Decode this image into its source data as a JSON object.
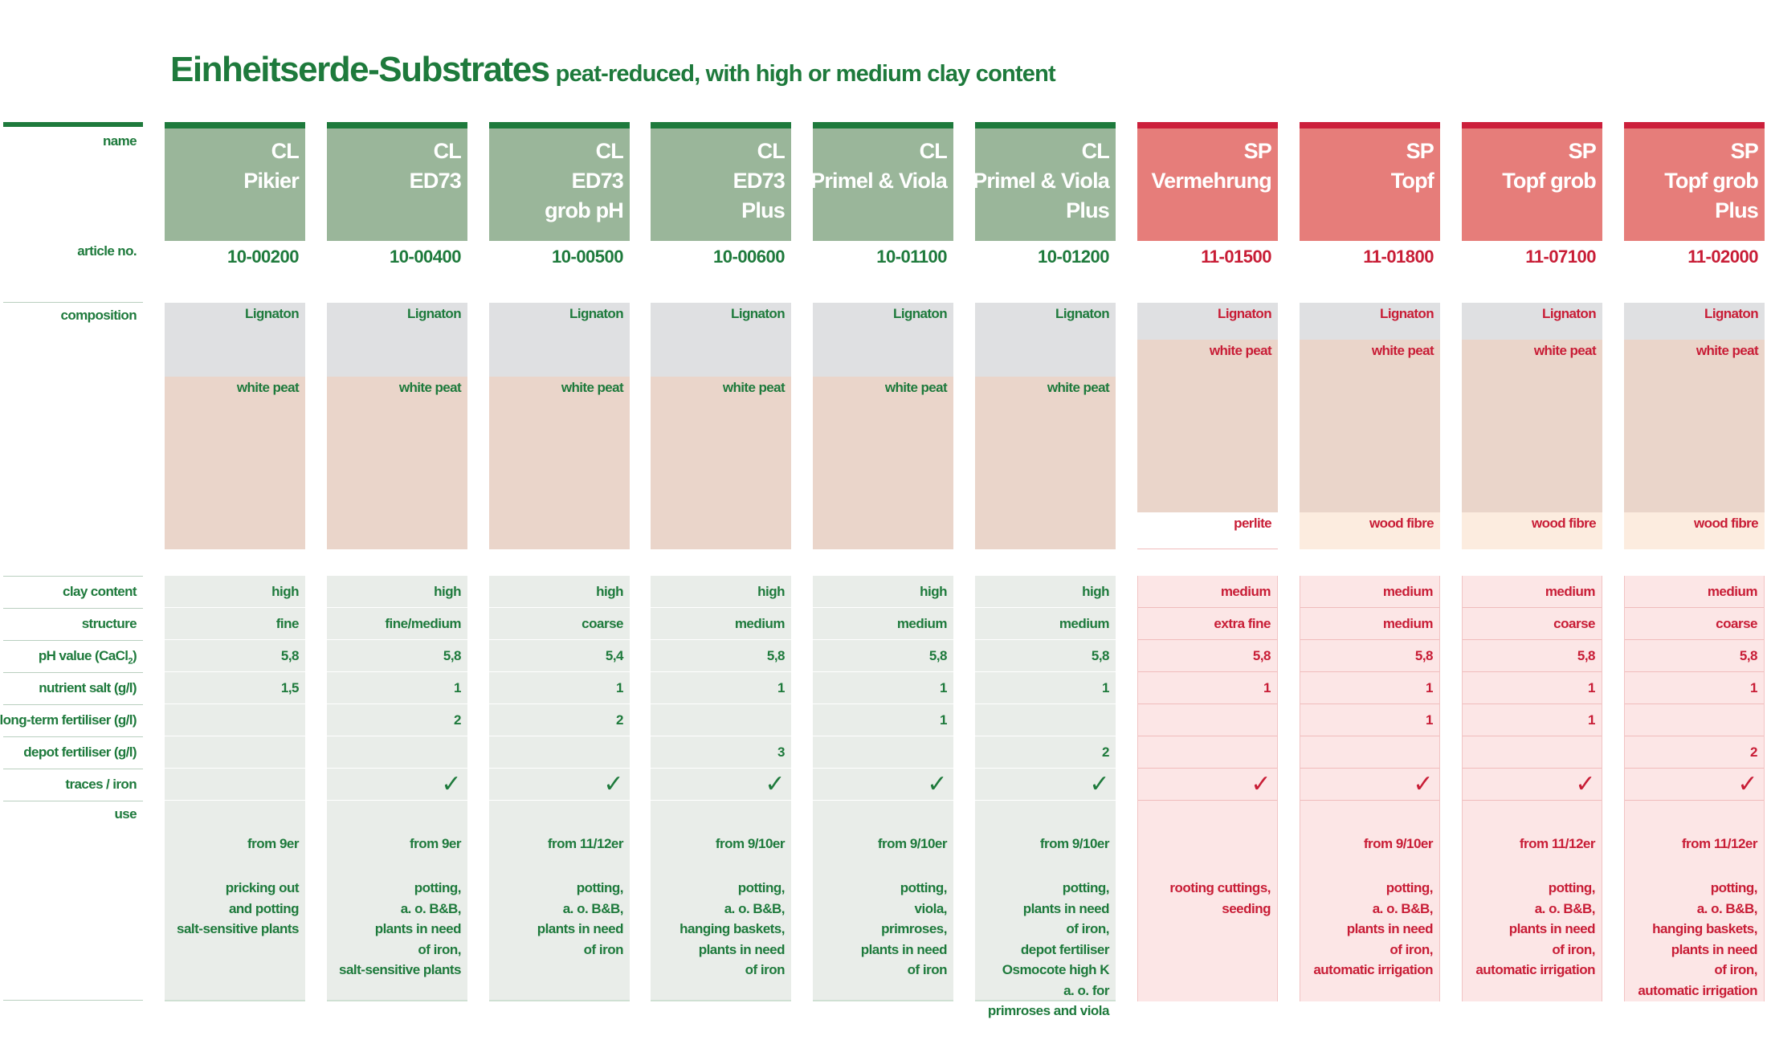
{
  "title": {
    "main": "Einheitserde-Substrates",
    "sub": "peat-reduced, with high or medium clay content"
  },
  "labels": {
    "name": "name",
    "article": "article no.",
    "composition": "composition",
    "clay": "clay content",
    "structure": "structure",
    "ph": "pH value  (CaCl",
    "ph_sub": "2",
    "ph_close": ")",
    "salt": "nutrient salt (g/l)",
    "longterm": "long-term fertiliser (g/l)",
    "depot": "depot fertiliser (g/l)",
    "traces": "traces / iron",
    "use": "use"
  },
  "check_glyph": "✓",
  "colors": {
    "cl_accent": "#1e7a3c",
    "cl_header": "#9ab69a",
    "sp_accent": "#c81d36",
    "sp_header": "#e67d7a",
    "lignaton": "#dfe0e2",
    "white_peat": "#ead5ca",
    "wood_fibre": "#fcecdf"
  },
  "products": [
    {
      "line": "CL",
      "name1": "Pikier",
      "name2": "",
      "name3": "",
      "article": "10-00200",
      "composition": [
        {
          "label": "Lignaton"
        },
        {
          "label": "white peat"
        }
      ],
      "clay": "high",
      "structure": "fine",
      "ph": "5,8",
      "salt": "1,5",
      "longterm": "",
      "depot": "",
      "iron": false,
      "use_from": "from 9er",
      "use_desc": "pricking out\nand potting\nsalt-sensitive plants"
    },
    {
      "line": "CL",
      "name1": "ED73",
      "name2": "",
      "name3": "",
      "article": "10-00400",
      "composition": [
        {
          "label": "Lignaton"
        },
        {
          "label": "white peat"
        }
      ],
      "clay": "high",
      "structure": "fine/medium",
      "ph": "5,8",
      "salt": "1",
      "longterm": "2",
      "depot": "",
      "iron": true,
      "use_from": "from 9er",
      "use_desc": "potting,\na. o. B&B,\nplants in need\nof iron,\nsalt-sensitive plants"
    },
    {
      "line": "CL",
      "name1": "ED73",
      "name2": "grob pH",
      "name3": "",
      "article": "10-00500",
      "composition": [
        {
          "label": "Lignaton"
        },
        {
          "label": "white peat"
        }
      ],
      "clay": "high",
      "structure": "coarse",
      "ph": "5,4",
      "salt": "1",
      "longterm": "2",
      "depot": "",
      "iron": true,
      "use_from": "from 11/12er",
      "use_desc": "potting,\na. o. B&B,\nplants in need\nof iron"
    },
    {
      "line": "CL",
      "name1": "ED73",
      "name2": "Plus",
      "name3": "",
      "article": "10-00600",
      "composition": [
        {
          "label": "Lignaton"
        },
        {
          "label": "white peat"
        }
      ],
      "clay": "high",
      "structure": "medium",
      "ph": "5,8",
      "salt": "1",
      "longterm": "",
      "depot": "3",
      "iron": true,
      "use_from": "from 9/10er",
      "use_desc": "potting,\na. o. B&B,\nhanging baskets,\nplants in need\nof iron"
    },
    {
      "line": "CL",
      "name1": "Primel & Viola",
      "name2": "",
      "name3": "",
      "article": "10-01100",
      "composition": [
        {
          "label": "Lignaton"
        },
        {
          "label": "white peat"
        }
      ],
      "clay": "high",
      "structure": "medium",
      "ph": "5,8",
      "salt": "1",
      "longterm": "1",
      "depot": "",
      "iron": true,
      "use_from": "from 9/10er",
      "use_desc": "potting,\nviola,\nprimroses,\nplants in need\nof iron"
    },
    {
      "line": "CL",
      "name1": "Primel & Viola",
      "name2": "Plus",
      "name3": "",
      "article": "10-01200",
      "composition": [
        {
          "label": "Lignaton"
        },
        {
          "label": "white peat"
        }
      ],
      "clay": "high",
      "structure": "medium",
      "ph": "5,8",
      "salt": "1",
      "longterm": "",
      "depot": "2",
      "iron": true,
      "use_from": "from 9/10er",
      "use_desc": "potting,\nplants in need\nof iron,\ndepot fertiliser\nOsmocote high K\na. o. for\nprimroses and viola"
    },
    {
      "line": "SP",
      "name1": "Vermehrung",
      "name2": "",
      "name3": "",
      "article": "11-01500",
      "composition": [
        {
          "label": "Lignaton"
        },
        {
          "label": "white peat"
        },
        {
          "label": "perlite"
        }
      ],
      "clay": "medium",
      "structure": "extra fine",
      "ph": "5,8",
      "salt": "1",
      "longterm": "",
      "depot": "",
      "iron": true,
      "use_from": "",
      "use_desc": "rooting cuttings,\nseeding"
    },
    {
      "line": "SP",
      "name1": "Topf",
      "name2": "",
      "name3": "",
      "article": "11-01800",
      "composition": [
        {
          "label": "Lignaton"
        },
        {
          "label": "white peat"
        },
        {
          "label": "wood fibre"
        }
      ],
      "clay": "medium",
      "structure": "medium",
      "ph": "5,8",
      "salt": "1",
      "longterm": "1",
      "depot": "",
      "iron": true,
      "use_from": "from 9/10er",
      "use_desc": "potting,\na. o. B&B,\nplants in need\nof iron,\nautomatic irrigation"
    },
    {
      "line": "SP",
      "name1": "Topf grob",
      "name2": "",
      "name3": "",
      "article": "11-07100",
      "composition": [
        {
          "label": "Lignaton"
        },
        {
          "label": "white peat"
        },
        {
          "label": "wood fibre"
        }
      ],
      "clay": "medium",
      "structure": "coarse",
      "ph": "5,8",
      "salt": "1",
      "longterm": "1",
      "depot": "",
      "iron": true,
      "use_from": "from 11/12er",
      "use_desc": "potting,\na. o. B&B,\nplants in need\nof iron,\nautomatic irrigation"
    },
    {
      "line": "SP",
      "name1": "Topf grob",
      "name2": "Plus",
      "name3": "",
      "article": "11-02000",
      "composition": [
        {
          "label": "Lignaton"
        },
        {
          "label": "white peat"
        },
        {
          "label": "wood fibre"
        }
      ],
      "clay": "medium",
      "structure": "coarse",
      "ph": "5,8",
      "salt": "1",
      "longterm": "",
      "depot": "2",
      "iron": true,
      "use_from": "from 11/12er",
      "use_desc": "potting,\na. o. B&B,\nhanging baskets,\nplants in need\nof iron,\nautomatic irrigation"
    }
  ]
}
